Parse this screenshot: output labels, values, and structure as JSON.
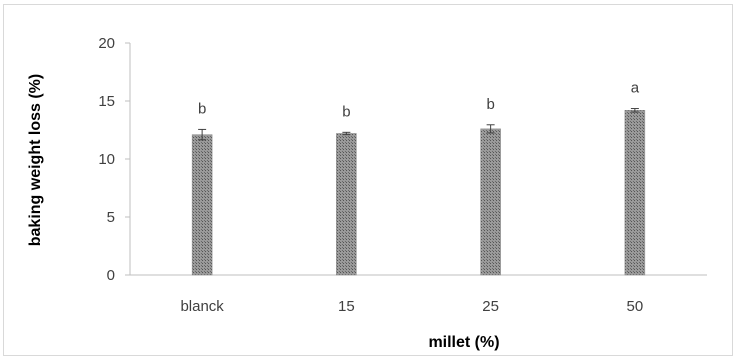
{
  "chart_data": {
    "type": "bar",
    "title": "",
    "xlabel": "millet (%)",
    "ylabel": "baking weight loss (%)",
    "categories": [
      "blanck",
      "15",
      "25",
      "50"
    ],
    "values": [
      12.1,
      12.2,
      12.6,
      14.2
    ],
    "error": [
      0.45,
      0.1,
      0.35,
      0.15
    ],
    "significance": [
      "b",
      "b",
      "b",
      "a"
    ],
    "ylim": [
      0,
      20
    ],
    "yticks": [
      0,
      5,
      10,
      15,
      20
    ],
    "grid": false,
    "legend": "none",
    "colors": {
      "bar": "#8c8c8c",
      "axis": "#bfbfbf",
      "text": "#404040"
    }
  }
}
